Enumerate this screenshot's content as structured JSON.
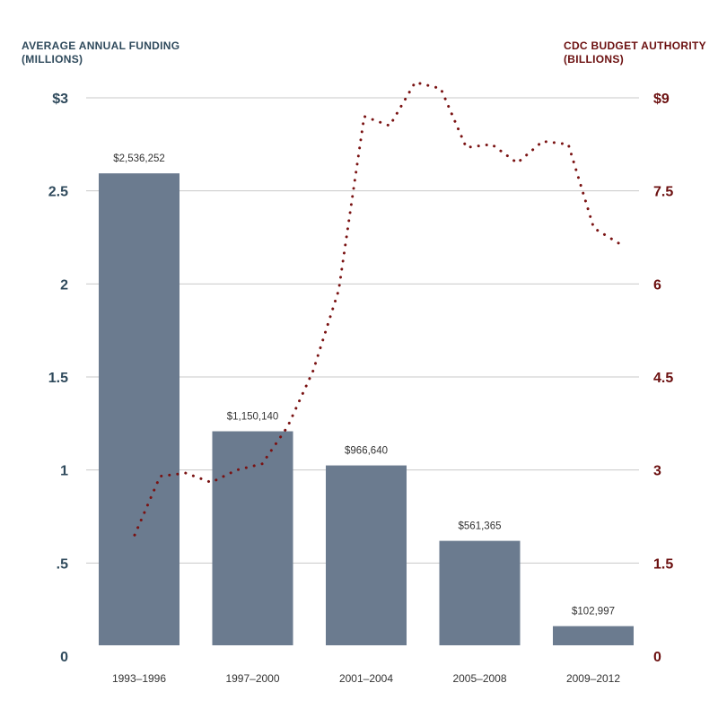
{
  "colors": {
    "left_axis": "#2f4a5c",
    "right_axis": "#6b0f0f",
    "bar": "#6b7b8f",
    "line": "#7a1212",
    "grid": "#c9c9c9"
  },
  "chart_data": {
    "type": "bar",
    "left_axis": {
      "title_line1": "AVERAGE ANNUAL FUNDING",
      "title_line2": "(MILLIONS)",
      "range": [
        0,
        3
      ],
      "ticks": [
        {
          "value": 0,
          "label": "0"
        },
        {
          "value": 0.5,
          "label": ".5"
        },
        {
          "value": 1,
          "label": "1"
        },
        {
          "value": 1.5,
          "label": "1.5"
        },
        {
          "value": 2,
          "label": "2"
        },
        {
          "value": 2.5,
          "label": "2.5"
        },
        {
          "value": 3,
          "label": "$3"
        }
      ]
    },
    "right_axis": {
      "title_line1": "CDC BUDGET AUTHORITY",
      "title_line2": "(BILLIONS)",
      "range": [
        0,
        9
      ],
      "ticks": [
        {
          "value": 0,
          "label": "0"
        },
        {
          "value": 1.5,
          "label": "1.5"
        },
        {
          "value": 3,
          "label": "3"
        },
        {
          "value": 4.5,
          "label": "4.5"
        },
        {
          "value": 6,
          "label": "6"
        },
        {
          "value": 7.5,
          "label": "7.5"
        },
        {
          "value": 9,
          "label": "$9"
        }
      ]
    },
    "categories": [
      "1993–1996",
      "1997–2000",
      "2001–2004",
      "2005–2008",
      "2009–2012"
    ],
    "bars": [
      {
        "value": 2.536252,
        "label": "$2,536,252"
      },
      {
        "value": 1.15014,
        "label": "$1,150,140"
      },
      {
        "value": 0.96664,
        "label": "$966,640"
      },
      {
        "value": 0.561365,
        "label": "$561,365"
      },
      {
        "value": 0.102997,
        "label": "$102,997"
      }
    ],
    "line_series": {
      "style": "dotted",
      "x": [
        1993,
        1994,
        1995,
        1996,
        1997,
        1998,
        1999,
        2000,
        2001,
        2002,
        2003,
        2004,
        2005,
        2006,
        2007,
        2008,
        2009,
        2010,
        2011,
        2012
      ],
      "values": [
        1.95,
        2.9,
        2.95,
        2.8,
        3.0,
        3.1,
        3.7,
        4.6,
        5.9,
        8.7,
        8.55,
        9.25,
        9.15,
        8.2,
        8.25,
        7.95,
        8.3,
        8.25,
        6.9,
        6.65
      ]
    },
    "grid": true
  }
}
